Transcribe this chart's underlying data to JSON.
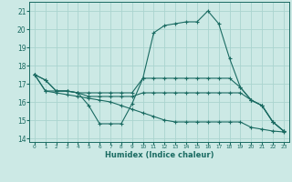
{
  "title": "",
  "xlabel": "Humidex (Indice chaleur)",
  "ylabel": "",
  "background_color": "#cce9e5",
  "grid_color": "#aad4cf",
  "line_color": "#1a6b62",
  "xlim": [
    -0.5,
    23.5
  ],
  "ylim": [
    13.8,
    21.5
  ],
  "yticks": [
    14,
    15,
    16,
    17,
    18,
    19,
    20,
    21
  ],
  "xticks": [
    0,
    1,
    2,
    3,
    4,
    5,
    6,
    7,
    8,
    9,
    10,
    11,
    12,
    13,
    14,
    15,
    16,
    17,
    18,
    19,
    20,
    21,
    22,
    23
  ],
  "series": [
    [
      17.5,
      17.2,
      16.6,
      16.6,
      16.5,
      15.8,
      14.8,
      14.8,
      14.8,
      15.9,
      17.3,
      19.8,
      20.2,
      20.3,
      20.4,
      20.4,
      21.0,
      20.3,
      18.4,
      16.8,
      16.1,
      15.8,
      14.9,
      14.4
    ],
    [
      17.5,
      17.2,
      16.6,
      16.6,
      16.5,
      16.5,
      16.5,
      16.5,
      16.5,
      16.5,
      17.3,
      17.3,
      17.3,
      17.3,
      17.3,
      17.3,
      17.3,
      17.3,
      17.3,
      16.8,
      16.1,
      15.8,
      14.9,
      14.4
    ],
    [
      17.5,
      16.6,
      16.6,
      16.6,
      16.5,
      16.3,
      16.3,
      16.3,
      16.3,
      16.3,
      16.5,
      16.5,
      16.5,
      16.5,
      16.5,
      16.5,
      16.5,
      16.5,
      16.5,
      16.5,
      16.1,
      15.8,
      14.9,
      14.4
    ],
    [
      17.5,
      16.6,
      16.5,
      16.4,
      16.3,
      16.2,
      16.1,
      16.0,
      15.8,
      15.6,
      15.4,
      15.2,
      15.0,
      14.9,
      14.9,
      14.9,
      14.9,
      14.9,
      14.9,
      14.9,
      14.6,
      14.5,
      14.4,
      14.35
    ]
  ]
}
